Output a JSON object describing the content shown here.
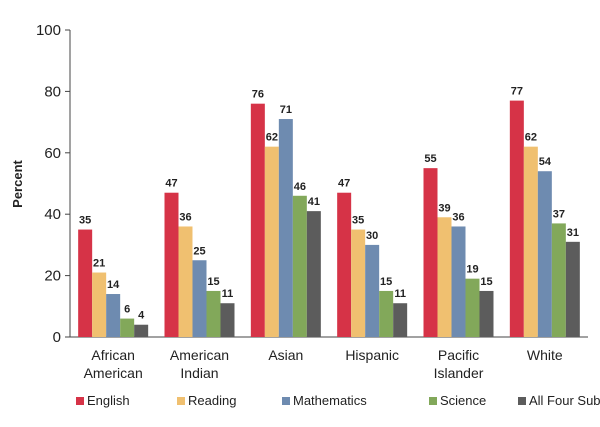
{
  "chart_data": {
    "type": "bar",
    "ylabel": "Percent",
    "xlabel": "",
    "ylim": [
      0,
      100
    ],
    "yticks": [
      0,
      20,
      40,
      60,
      80,
      100
    ],
    "categories": [
      [
        "African",
        "American"
      ],
      [
        "American",
        "Indian"
      ],
      [
        "Asian"
      ],
      [
        "Hispanic"
      ],
      [
        "Pacific",
        "Islander"
      ],
      [
        "White"
      ]
    ],
    "series": [
      {
        "name": "English",
        "color": "#d63347",
        "values": [
          35,
          47,
          76,
          47,
          55,
          77
        ]
      },
      {
        "name": "Reading",
        "color": "#f0c070",
        "values": [
          21,
          36,
          62,
          35,
          39,
          62
        ]
      },
      {
        "name": "Mathematics",
        "color": "#6e8bb0",
        "values": [
          14,
          25,
          71,
          30,
          36,
          54
        ]
      },
      {
        "name": "Science",
        "color": "#82a85a",
        "values": [
          6,
          15,
          46,
          15,
          19,
          37
        ]
      },
      {
        "name": "All Four Subjects",
        "color": "#5c5c5c",
        "values": [
          4,
          11,
          41,
          11,
          15,
          31
        ]
      }
    ],
    "legend_position": "bottom",
    "grid": false
  }
}
